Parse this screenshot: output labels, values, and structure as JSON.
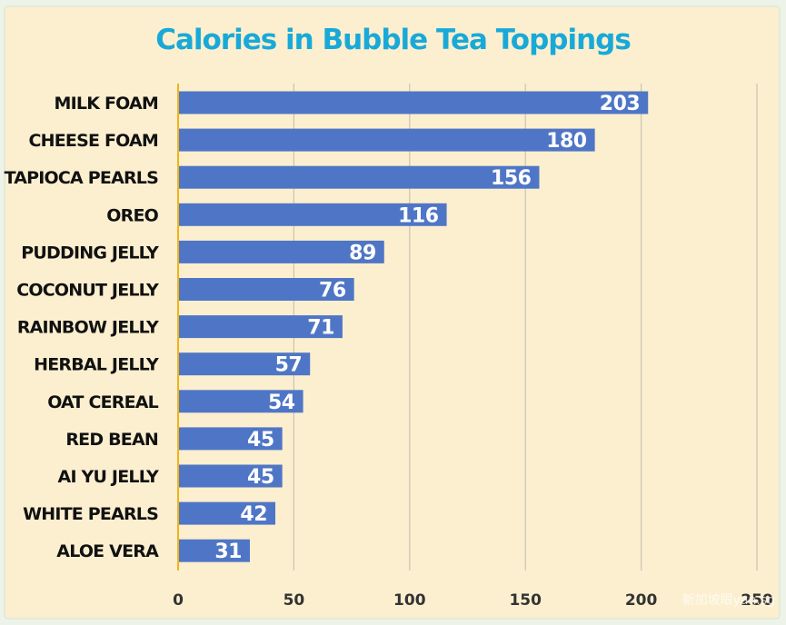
{
  "chart_data": {
    "type": "bar",
    "orientation": "horizontal",
    "title": "Calories in Bubble Tea Toppings",
    "categories": [
      "MILK FOAM",
      "CHEESE FOAM",
      "TAPIOCA PEARLS",
      "OREO",
      "PUDDING JELLY",
      "COCONUT JELLY",
      "RAINBOW JELLY",
      "HERBAL JELLY",
      "OAT CEREAL",
      "RED BEAN",
      "AI YU JELLY",
      "WHITE PEARLS",
      "ALOE VERA"
    ],
    "values": [
      203,
      180,
      156,
      116,
      89,
      76,
      71,
      57,
      54,
      45,
      45,
      42,
      31
    ],
    "xlim": [
      0,
      250
    ],
    "xticks": [
      0,
      50,
      100,
      150,
      200,
      250
    ],
    "grid": "vertical",
    "bar_color": "#4f76c6",
    "axis_color": "#f2b21c",
    "background": "#fcefcf",
    "title_color": "#19a9d8"
  },
  "watermark": "新加坡眼yan.sg"
}
